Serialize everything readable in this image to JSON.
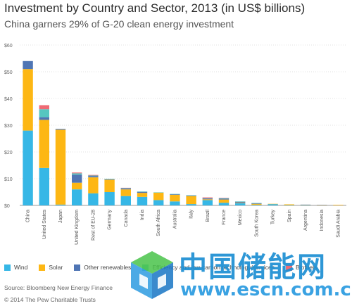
{
  "title": "Investment by Country and Sector, 2013 (in US$ billions)",
  "subtitle": "China garners 29% of G-20 clean energy investment",
  "source": "Source: Bloomberg New Energy Finance",
  "copyright": "© 2014 The Pew Charitable Trusts",
  "watermark": {
    "cn_text": "中国储能网",
    "url": "www.escn.com.cn"
  },
  "colors": {
    "wind": "#36b7e6",
    "solar": "#fdb714",
    "other": "#4f75b4",
    "efficiency": "#56c6c0",
    "biofuels": "#ef6b75"
  },
  "chart_data": {
    "type": "bar",
    "stacked": true,
    "categories": [
      "China",
      "United States",
      "Japan",
      "United Kingdom",
      "Rest of EU-28",
      "Germany",
      "Canada",
      "India",
      "South Africa",
      "Australia",
      "Italy",
      "Brazil",
      "France",
      "Mexico",
      "South Korea",
      "Turkey",
      "Spain",
      "Argentina",
      "Indonesia",
      "Saudi Arabia"
    ],
    "ylim": [
      0,
      60
    ],
    "yticks": [
      "$0",
      "$10",
      "$20",
      "$30",
      "$40",
      "$50",
      "$60"
    ],
    "grid": true,
    "legend_position": "bottom",
    "series": [
      {
        "name": "Wind",
        "color": "#36b7e6",
        "values": [
          28,
          14,
          0.3,
          6,
          4.5,
          5,
          3.5,
          3.2,
          2,
          1.5,
          0.5,
          2,
          1,
          0.8,
          0.2,
          0.5,
          0.1,
          0.1,
          0,
          0
        ]
      },
      {
        "name": "Solar",
        "color": "#fdb714",
        "values": [
          23,
          18,
          28,
          2.5,
          6,
          4.6,
          2.5,
          1.5,
          2.8,
          2.5,
          3,
          0.3,
          1.2,
          0.2,
          0.4,
          0.1,
          0.3,
          0.1,
          0.1,
          0.2
        ]
      },
      {
        "name": "Other renewables",
        "color": "#4f75b4",
        "values": [
          3,
          1,
          0.3,
          3,
          0.5,
          0.2,
          0.3,
          0.4,
          0,
          0.2,
          0.2,
          0.3,
          0.3,
          0.4,
          0.2,
          0,
          0,
          0.1,
          0.1,
          0
        ]
      },
      {
        "name": "Efficiency and low-carbon technology/services",
        "color": "#56c6c0",
        "values": [
          0,
          3,
          0,
          0.5,
          0.2,
          0.1,
          0.2,
          0.1,
          0.1,
          0.1,
          0.1,
          0.1,
          0.2,
          0.1,
          0.1,
          0,
          0,
          0,
          0,
          0
        ]
      },
      {
        "name": "Biofuels",
        "color": "#ef6b75",
        "values": [
          0,
          1.5,
          0,
          0.3,
          0.2,
          0,
          0.1,
          0,
          0,
          0,
          0,
          0.3,
          0.1,
          0,
          0,
          0,
          0,
          0,
          0,
          0
        ]
      }
    ]
  }
}
